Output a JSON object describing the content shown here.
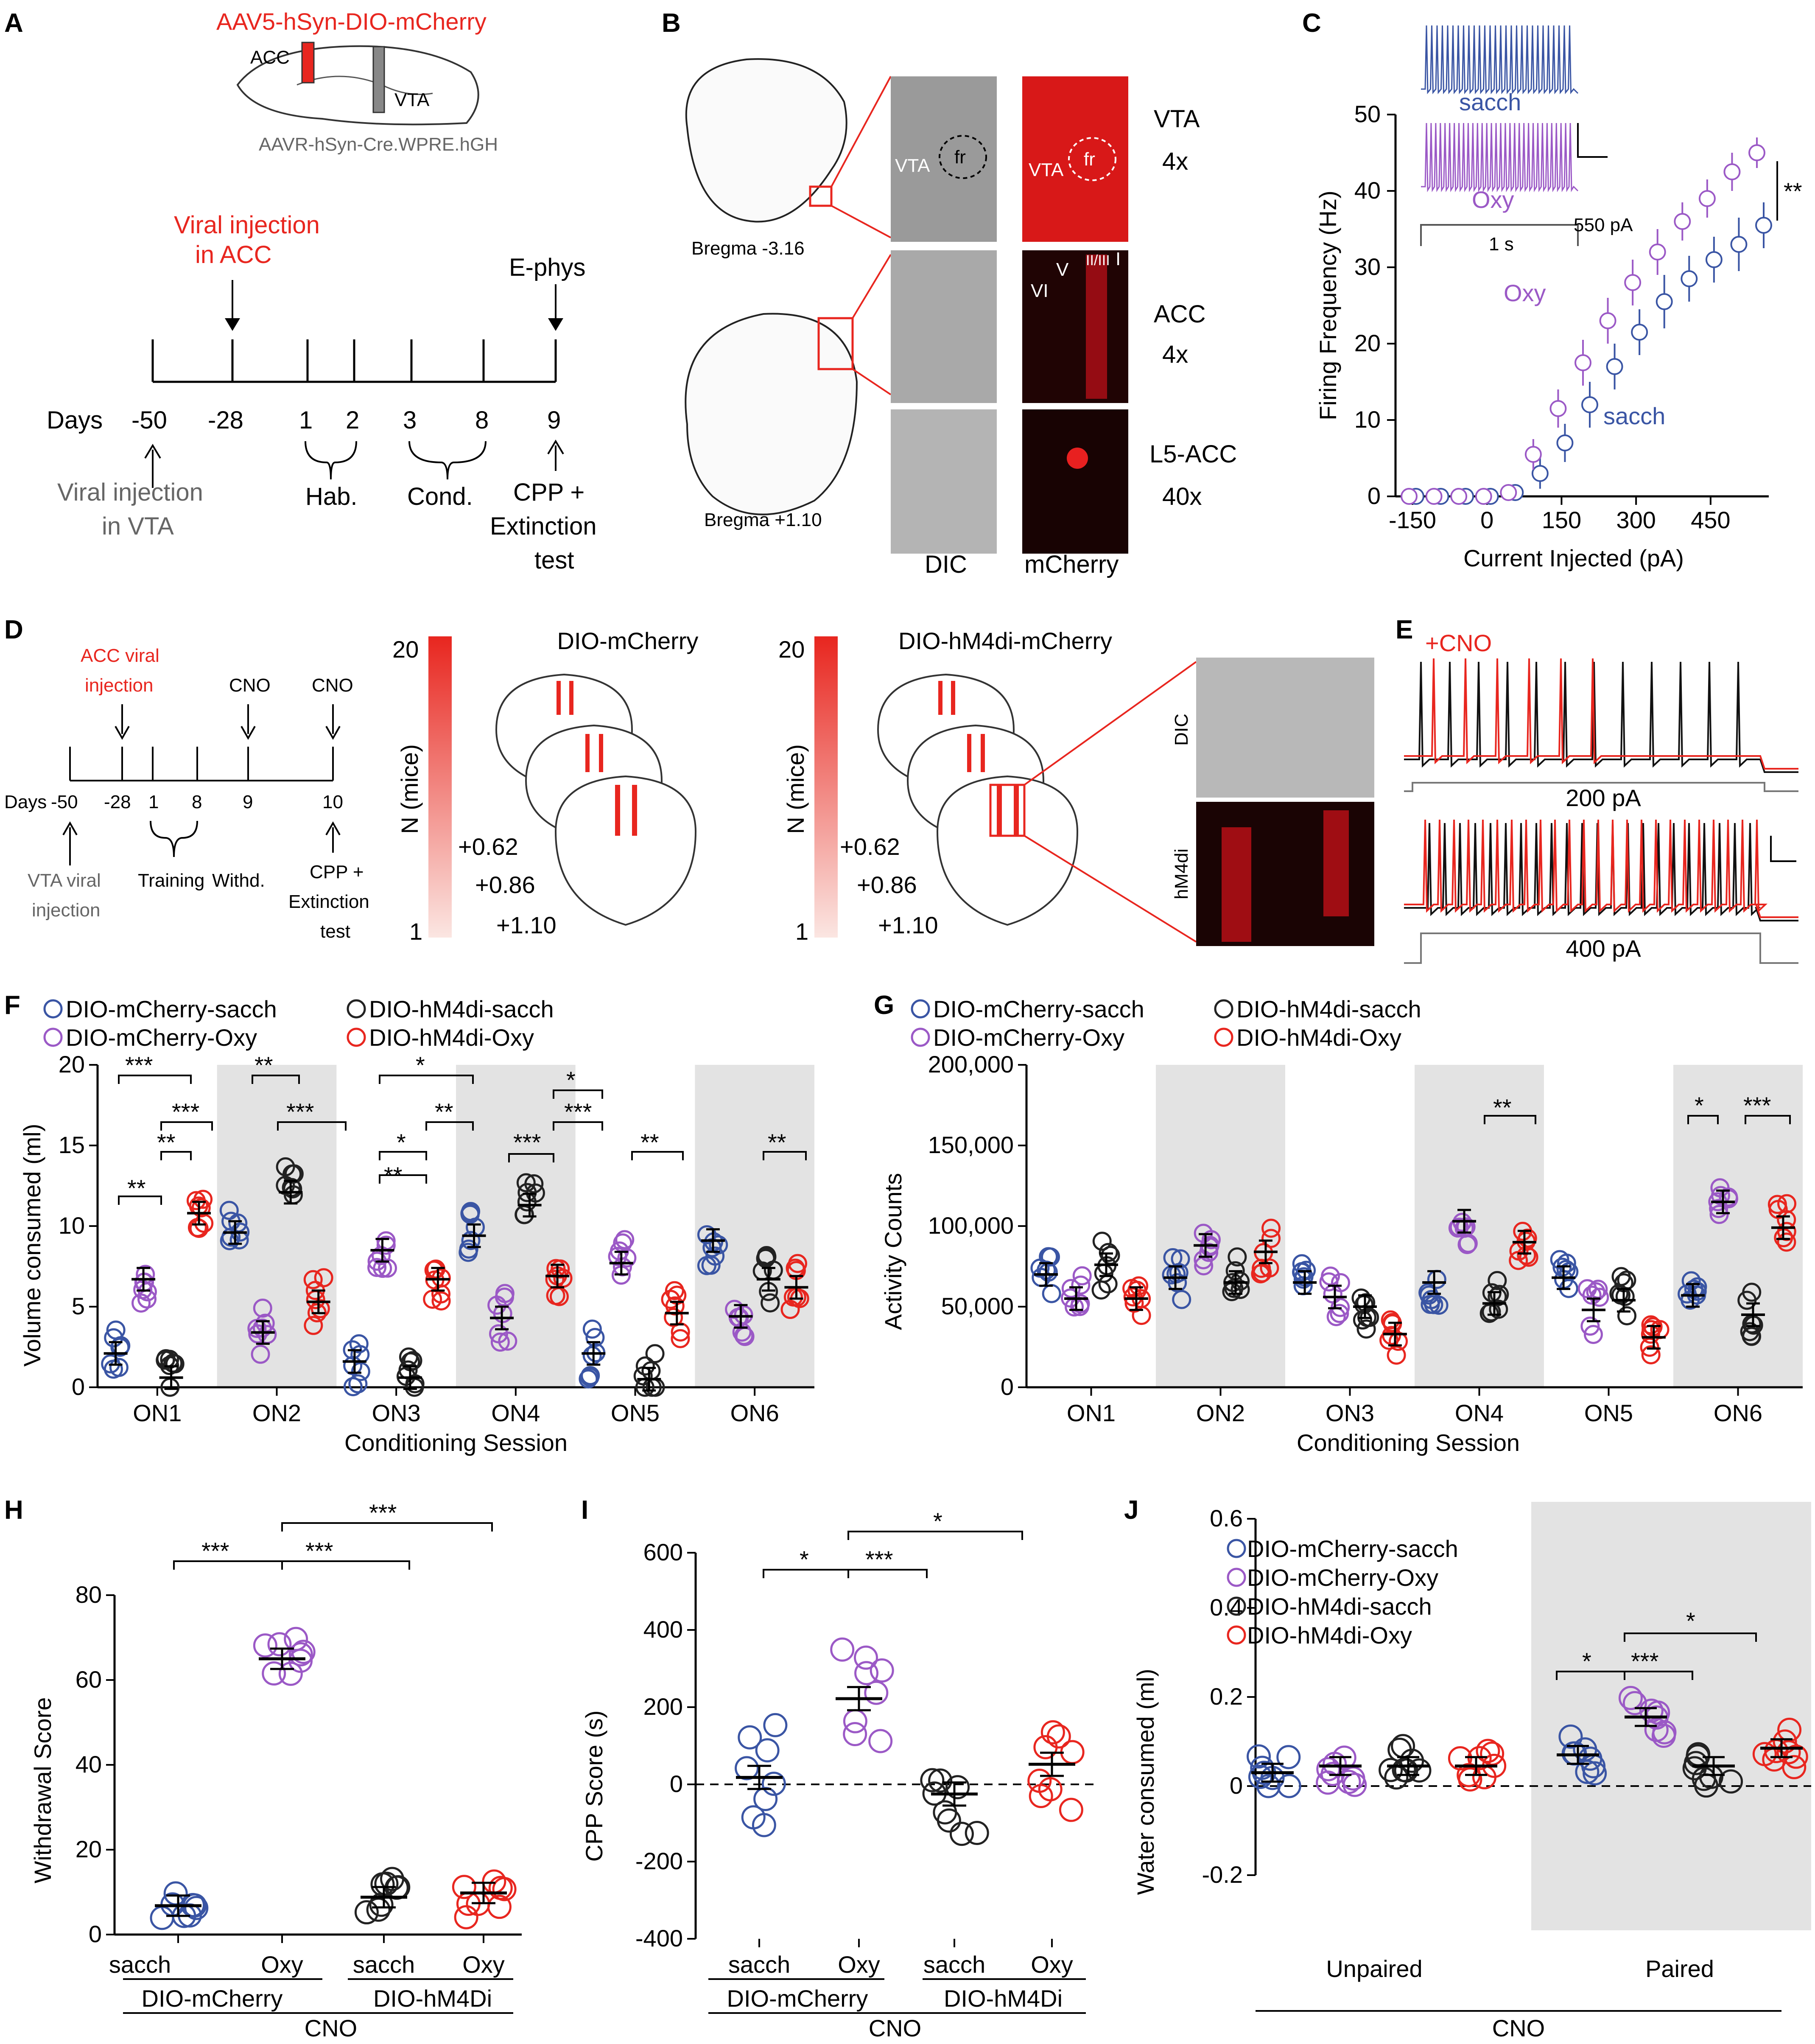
{
  "colors": {
    "sacch_mcherry": "#3a55a4",
    "oxy_mcherry": "#9b59c6",
    "sacch_hm4di": "#222222",
    "oxy_hm4di": "#e8261f",
    "shade": "#e3e3e3",
    "red_text": "#e8261f",
    "gray_text": "#666666"
  },
  "panel_letters": {
    "A": "A",
    "B": "B",
    "C": "C",
    "D": "D",
    "E": "E",
    "F": "F",
    "G": "G",
    "H": "H",
    "I": "I",
    "J": "J"
  },
  "panelA": {
    "virus_acc": "AAV5-hSyn-DIO-mCherry",
    "acc": "ACC",
    "vta": "VTA",
    "virus_vta": "AAVR-hSyn-Cre.WPRE.hGH",
    "viral_injection": "Viral injection",
    "in_acc": "in ACC",
    "ephys": "E-phys",
    "days": "Days",
    "ticks": [
      "-50",
      "-28",
      "1",
      "2",
      "3",
      "8",
      "9"
    ],
    "hab": "Hab.",
    "cond": "Cond.",
    "cpp1": "CPP +",
    "cpp2": "Extinction",
    "cpp3": "test",
    "vta_inj1": "Viral injection",
    "vta_inj2": "in VTA"
  },
  "panelB": {
    "bregma1": "Bregma -3.16",
    "bregma2": "Bregma +1.10",
    "vta": "VTA",
    "fr": "fr",
    "r1a": "VTA",
    "r1b": "4x",
    "r2a": "ACC",
    "r2b": "4x",
    "r3a": "L5-ACC",
    "r3b": "40x",
    "col1": "DIC",
    "col2": "mCherry",
    "layers": [
      "VI",
      "V",
      "II/III",
      "I"
    ]
  },
  "panelC": {
    "ylabel": "Firing Frequency (Hz)",
    "xlabel": "Current Injected (pA)",
    "yticks": [
      "0",
      "10",
      "20",
      "30",
      "40",
      "50"
    ],
    "xticks": [
      "-150",
      "0",
      "150",
      "300",
      "450"
    ],
    "sacch_label": "sacch",
    "oxy_label": "Oxy",
    "inset_sacch": "sacch",
    "inset_oxy": "Oxy",
    "inset_time": "1 s",
    "inset_current": "550 pA",
    "sig": "**",
    "chart_data": {
      "type": "line",
      "title": "",
      "xlabel": "Current Injected (pA)",
      "ylabel": "Firing Frequency (Hz)",
      "xlim": [
        -150,
        550
      ],
      "ylim": [
        0,
        50
      ],
      "x": [
        -150,
        -100,
        -50,
        0,
        50,
        100,
        150,
        200,
        250,
        300,
        350,
        400,
        450,
        500,
        550
      ],
      "series": [
        {
          "name": "sacch",
          "values": [
            0,
            0,
            0,
            0,
            0.5,
            3,
            7,
            12,
            17,
            21.5,
            25.5,
            28.5,
            31,
            33,
            35.5
          ],
          "sem": [
            0.3,
            0.3,
            0.3,
            0.3,
            0.6,
            2,
            2.5,
            3,
            3,
            3,
            3.5,
            3,
            3,
            3.5,
            3
          ]
        },
        {
          "name": "Oxy",
          "values": [
            0,
            0,
            0,
            0,
            0.5,
            5.5,
            11.5,
            17.5,
            23,
            28,
            32,
            36,
            39,
            42.5,
            45
          ],
          "sem": [
            0.3,
            0.3,
            0.3,
            0.3,
            0.6,
            2,
            2.5,
            3,
            3,
            3,
            3,
            2.5,
            2.5,
            2.5,
            2
          ]
        }
      ]
    }
  },
  "panelD": {
    "acc_inj1": "ACC viral",
    "acc_inj2": "injection",
    "cno": "CNO",
    "days": "Days",
    "ticks": [
      "-50",
      "-28",
      "1",
      "8",
      "9",
      "10"
    ],
    "vta1": "VTA viral",
    "vta2": "injection",
    "training": "Training",
    "withd": "Withd.",
    "cpp1": "CPP +",
    "cpp2": "Extinction",
    "cpp3": "test",
    "scale_label": "N (mice)",
    "scale_max": "20",
    "scale_min": "1",
    "title_mcherry": "DIO-mCherry",
    "title_hm4di": "DIO-hM4di-mCherry",
    "levels": [
      "+0.62",
      "+0.86",
      "+1.10"
    ],
    "dic": "DIC",
    "hm4di": "hM4di"
  },
  "panelE": {
    "cno": "+CNO",
    "i1": "200 pA",
    "i2": "400 pA"
  },
  "panelF": {
    "ylabel": "Volume consumed (ml)",
    "xlabel": "Conditioning Session",
    "yticks": [
      "0",
      "5",
      "10",
      "15",
      "20"
    ],
    "legend": [
      "DIO-mCherry-sacch",
      "DIO-mCherry-Oxy",
      "DIO-hM4di-sacch",
      "DIO-hM4di-Oxy"
    ],
    "sig": [
      "***",
      "***",
      "**",
      "**",
      "**",
      "***",
      "*",
      "**",
      "*",
      "**",
      "*",
      "***",
      "***",
      "**",
      "**"
    ],
    "chart_data": {
      "type": "scatter",
      "title": "",
      "xlabel": "Conditioning Session",
      "ylabel": "Volume consumed (ml)",
      "ylim": [
        0,
        20
      ],
      "categories": [
        "ON1",
        "ON2",
        "ON3",
        "ON4",
        "ON5",
        "ON6"
      ],
      "series": [
        {
          "name": "DIO-mCherry-sacch",
          "values": [
            2.1,
            9.6,
            1.6,
            9.4,
            2.1,
            9.1
          ]
        },
        {
          "name": "DIO-mCherry-Oxy",
          "values": [
            6.7,
            3.4,
            8.5,
            4.3,
            7.7,
            4.4
          ]
        },
        {
          "name": "DIO-hM4di-sacch",
          "values": [
            0.6,
            12.1,
            0.6,
            11.3,
            0.5,
            6.7
          ]
        },
        {
          "name": "DIO-hM4di-Oxy",
          "values": [
            10.8,
            5.3,
            6.7,
            6.9,
            4.6,
            6.2
          ]
        }
      ]
    }
  },
  "panelG": {
    "ylabel": "Activity Counts",
    "xlabel": "Conditioning Session",
    "yticks": [
      "0",
      "50,000",
      "100,000",
      "150,000",
      "200,000"
    ],
    "legend": [
      "DIO-mCherry-sacch",
      "DIO-mCherry-Oxy",
      "DIO-hM4di-sacch",
      "DIO-hM4di-Oxy"
    ],
    "sig": [
      "**",
      "*",
      "***"
    ],
    "chart_data": {
      "type": "scatter",
      "title": "",
      "xlabel": "Conditioning Session",
      "ylabel": "Activity Counts",
      "ylim": [
        0,
        200000
      ],
      "categories": [
        "ON1",
        "ON2",
        "ON3",
        "ON4",
        "ON5",
        "ON6"
      ],
      "series": [
        {
          "name": "DIO-mCherry-sacch",
          "values": [
            70000,
            68000,
            65000,
            65000,
            68000,
            57000
          ]
        },
        {
          "name": "DIO-mCherry-Oxy",
          "values": [
            55000,
            88000,
            56000,
            103000,
            48000,
            115000
          ]
        },
        {
          "name": "DIO-hM4di-sacch",
          "values": [
            76000,
            65000,
            50000,
            52000,
            54000,
            45000
          ]
        },
        {
          "name": "DIO-hM4di-Oxy",
          "values": [
            55000,
            84000,
            33000,
            90000,
            31000,
            99000
          ]
        }
      ]
    }
  },
  "panelH": {
    "ylabel": "Withdrawal  Score",
    "yticks": [
      "0",
      "20",
      "40",
      "60",
      "80"
    ],
    "xticks": [
      "sacch",
      "Oxy",
      "sacch",
      "Oxy"
    ],
    "group1": "DIO-mCherry",
    "group2": "DIO-hM4Di",
    "cno": "CNO",
    "sig": [
      "***",
      "***",
      "***"
    ],
    "chart_data": {
      "type": "scatter",
      "title": "",
      "ylabel": "Withdrawal  Score",
      "ylim": [
        0,
        80
      ],
      "categories": [
        "sacch",
        "Oxy",
        "sacch",
        "Oxy"
      ],
      "series": [
        {
          "name": "mean",
          "values": [
            6.8,
            65,
            8.8,
            9.8
          ]
        }
      ]
    }
  },
  "panelI": {
    "ylabel": "CPP Score (s)",
    "yticks": [
      "-400",
      "-200",
      "0",
      "200",
      "400",
      "600"
    ],
    "xticks": [
      "sacch",
      "Oxy",
      "sacch",
      "Oxy"
    ],
    "group1": "DIO-mCherry",
    "group2": "DIO-hM4Di",
    "cno": "CNO",
    "sig": [
      "*",
      "***",
      "*"
    ],
    "chart_data": {
      "type": "scatter",
      "title": "",
      "ylabel": "CPP Score (s)",
      "ylim": [
        -400,
        600
      ],
      "categories": [
        "sacch",
        "Oxy",
        "sacch",
        "Oxy"
      ],
      "series": [
        {
          "name": "mean",
          "values": [
            18,
            222,
            -25,
            52
          ]
        }
      ]
    }
  },
  "panelJ": {
    "ylabel": "Water consumed (ml)",
    "yticks": [
      "-0.2",
      "0",
      "0.2",
      "0.4",
      "0.6"
    ],
    "xticks": [
      "Unpaired",
      "Paired"
    ],
    "cno": "CNO",
    "legend": [
      "DIO-mCherry-sacch",
      "DIO-mCherry-Oxy",
      "DIO-hM4di-sacch",
      "DIO-hM4di-Oxy"
    ],
    "sig": [
      "*",
      "***",
      "*"
    ],
    "chart_data": {
      "type": "scatter",
      "title": "",
      "ylabel": "Water consumed (ml)",
      "ylim": [
        -0.2,
        0.6
      ],
      "categories": [
        "Unpaired",
        "Paired"
      ],
      "series": [
        {
          "name": "DIO-mCherry-sacch",
          "values": [
            0.03,
            0.07
          ]
        },
        {
          "name": "DIO-mCherry-Oxy",
          "values": [
            0.045,
            0.155
          ]
        },
        {
          "name": "DIO-hM4di-sacch",
          "values": [
            0.045,
            0.045
          ]
        },
        {
          "name": "DIO-hM4di-Oxy",
          "values": [
            0.045,
            0.085
          ]
        }
      ]
    }
  }
}
